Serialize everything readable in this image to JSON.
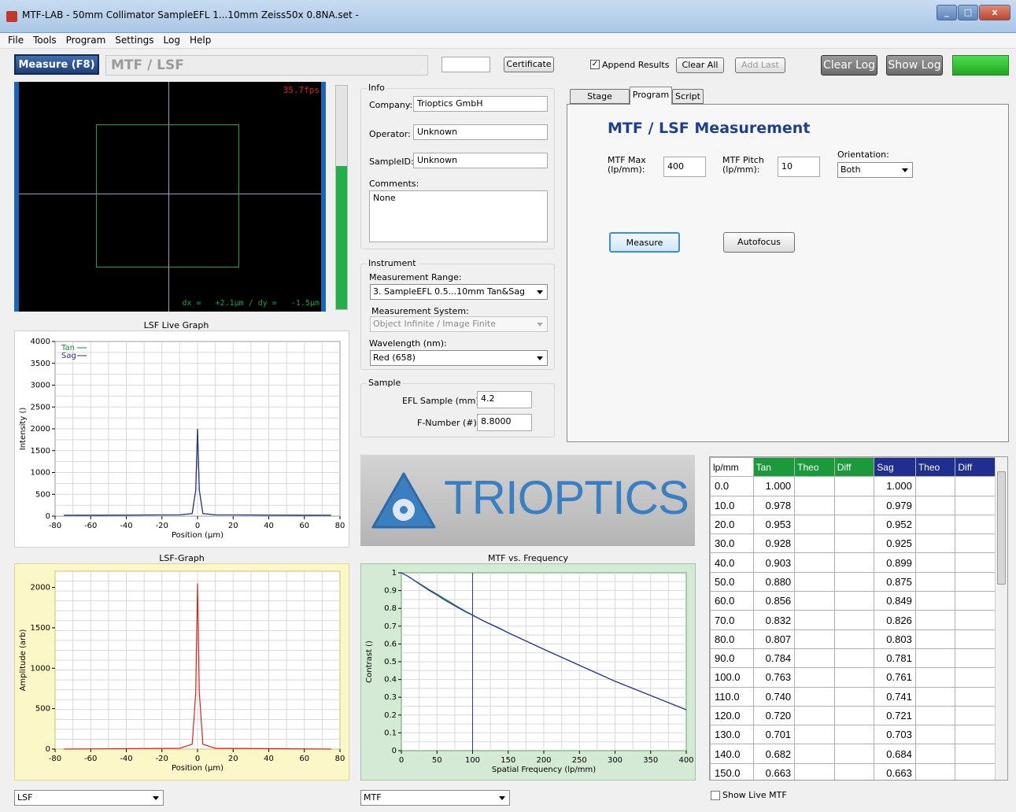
{
  "window": {
    "title": "MTF-LAB - 50mm Collimator SampleEFL 1...10mm Zeiss50x 0.8NA.set -",
    "min": "_",
    "max": "□",
    "close": "x"
  },
  "menu": [
    "File",
    "Tools",
    "Program",
    "Settings",
    "Log",
    "Help"
  ],
  "toolbar": {
    "measure": "Measure (F8)",
    "mode": "MTF / LSF",
    "certificate": "Certificate",
    "append_results": "Append Results",
    "clear_all": "Clear All",
    "add_last": "Add Last",
    "clear_log": "Clear Log",
    "show_log": "Show Log"
  },
  "camera": {
    "fps": "35.7fps",
    "readout": "dx =   +2.1µm / dy =   -1.5µm"
  },
  "info": {
    "group": "Info",
    "company_label": "Company:",
    "company": "Trioptics GmbH",
    "operator_label": "Operator:",
    "operator": "Unknown",
    "sample_label": "SampleID:",
    "sample": "Unknown",
    "comments_label": "Comments:",
    "comments": "None"
  },
  "instrument": {
    "group": "Instrument",
    "range_label": "Measurement Range:",
    "range": "3. SampleEFL  0.5...10mm Tan&Sag",
    "system_label": "Measurement System:",
    "system": "Object Infinite / Image Finite",
    "wave_label": "Wavelength (nm):",
    "wave": "Red (658)"
  },
  "sample": {
    "group": "Sample",
    "efl_label": "EFL Sample (mm):",
    "efl": "4.2",
    "fnum_label": "F-Number (#):",
    "fnum": "8.8000"
  },
  "tabs": [
    "Stage Control",
    "Program",
    "Script"
  ],
  "program": {
    "title": "MTF / LSF  Measurement",
    "max_label": "MTF Max\n(lp/mm):",
    "max": "400",
    "pitch_label": "MTF Pitch\n(lp/mm):",
    "pitch": "10",
    "orient_label": "Orientation:",
    "orient": "Both",
    "measure": "Measure",
    "autofocus": "Autofocus"
  },
  "logo": "TRIOPTICS",
  "lsf_live": {
    "title": "LSF Live Graph",
    "xlabel": "Position (µm)",
    "ylabel": "Intensity ()",
    "legend": [
      "Tan",
      "Sag"
    ],
    "yticks": [
      "4000",
      "3500",
      "3000",
      "2500",
      "2000",
      "1500",
      "1000",
      "500",
      "0"
    ],
    "xticks": [
      "-80",
      "-60",
      "-40",
      "-20",
      "0",
      "20",
      "40",
      "60",
      "80"
    ]
  },
  "lsf_graph": {
    "title": "LSF-Graph",
    "xlabel": "Position (µm)",
    "ylabel": "Amplitude (arb)",
    "yticks": [
      "2000",
      "1500",
      "1000",
      "500",
      "0"
    ],
    "xticks": [
      "-80",
      "-60",
      "-40",
      "-20",
      "0",
      "20",
      "40",
      "60",
      "80"
    ]
  },
  "mtf_graph": {
    "title": "MTF vs. Frequency",
    "xlabel": "Spatial Frequency (lp/mm)",
    "ylabel": "Contrast ()",
    "yticks": [
      "1",
      "0.9",
      "0.8",
      "0.7",
      "0.6",
      "0.5",
      "0.4",
      "0.3",
      "0.2",
      "0.1",
      "0"
    ],
    "xticks": [
      "0",
      "50",
      "100",
      "150",
      "200",
      "250",
      "300",
      "350",
      "400"
    ]
  },
  "table": {
    "headers": [
      "lp/mm",
      "Tan",
      "Theo",
      "Diff",
      "Sag",
      "Theo",
      "Diff"
    ],
    "rows": [
      [
        "0.0",
        "1.000",
        "1.000"
      ],
      [
        "10.0",
        "0.978",
        "0.979"
      ],
      [
        "20.0",
        "0.953",
        "0.952"
      ],
      [
        "30.0",
        "0.928",
        "0.925"
      ],
      [
        "40.0",
        "0.903",
        "0.899"
      ],
      [
        "50.0",
        "0.880",
        "0.875"
      ],
      [
        "60.0",
        "0.856",
        "0.849"
      ],
      [
        "70.0",
        "0.832",
        "0.826"
      ],
      [
        "80.0",
        "0.807",
        "0.803"
      ],
      [
        "90.0",
        "0.784",
        "0.781"
      ],
      [
        "100.0",
        "0.763",
        "0.761"
      ],
      [
        "110.0",
        "0.740",
        "0.741"
      ],
      [
        "120.0",
        "0.720",
        "0.721"
      ],
      [
        "130.0",
        "0.701",
        "0.703"
      ],
      [
        "140.0",
        "0.682",
        "0.684"
      ],
      [
        "150.0",
        "0.663",
        "0.663"
      ]
    ]
  },
  "bottom": {
    "lsf_select": "LSF",
    "mtf_select": "MTF",
    "show_live": "Show Live MTF"
  },
  "chart_data": [
    {
      "type": "line",
      "title": "MTF vs. Frequency",
      "xlabel": "Spatial Frequency (lp/mm)",
      "ylabel": "Contrast ()",
      "xlim": [
        0,
        400
      ],
      "ylim": [
        0,
        1
      ],
      "x": [
        0,
        10,
        20,
        30,
        40,
        50,
        60,
        70,
        80,
        90,
        100,
        110,
        120,
        130,
        140,
        150,
        200,
        250,
        300,
        350,
        400
      ],
      "series": [
        {
          "name": "Tan",
          "values": [
            1.0,
            0.978,
            0.953,
            0.928,
            0.903,
            0.88,
            0.856,
            0.832,
            0.807,
            0.784,
            0.763,
            0.74,
            0.72,
            0.701,
            0.682,
            0.663,
            0.57,
            0.48,
            0.39,
            0.31,
            0.23
          ]
        },
        {
          "name": "Sag",
          "values": [
            1.0,
            0.979,
            0.952,
            0.925,
            0.899,
            0.875,
            0.849,
            0.826,
            0.803,
            0.781,
            0.761,
            0.741,
            0.721,
            0.703,
            0.684,
            0.663,
            0.57,
            0.48,
            0.39,
            0.31,
            0.23
          ]
        }
      ]
    },
    {
      "type": "line",
      "title": "LSF Live Graph",
      "xlabel": "Position (µm)",
      "ylabel": "Intensity ()",
      "xlim": [
        -80,
        80
      ],
      "ylim": [
        0,
        4000
      ],
      "x": [
        -75,
        -10,
        -3,
        -1,
        0,
        1,
        3,
        10,
        75
      ],
      "series": [
        {
          "name": "Tan",
          "values": [
            20,
            30,
            60,
            600,
            2000,
            600,
            60,
            30,
            20
          ]
        },
        {
          "name": "Sag",
          "values": [
            20,
            30,
            60,
            600,
            2000,
            600,
            60,
            30,
            20
          ]
        }
      ]
    },
    {
      "type": "line",
      "title": "LSF-Graph",
      "xlabel": "Position (µm)",
      "ylabel": "Amplitude (arb)",
      "xlim": [
        -80,
        80
      ],
      "ylim": [
        0,
        2200
      ],
      "x": [
        -75,
        -10,
        -3,
        -1,
        0,
        1,
        3,
        10,
        75
      ],
      "series": [
        {
          "values": [
            0,
            10,
            60,
            700,
            2050,
            700,
            60,
            10,
            0
          ]
        }
      ]
    }
  ]
}
